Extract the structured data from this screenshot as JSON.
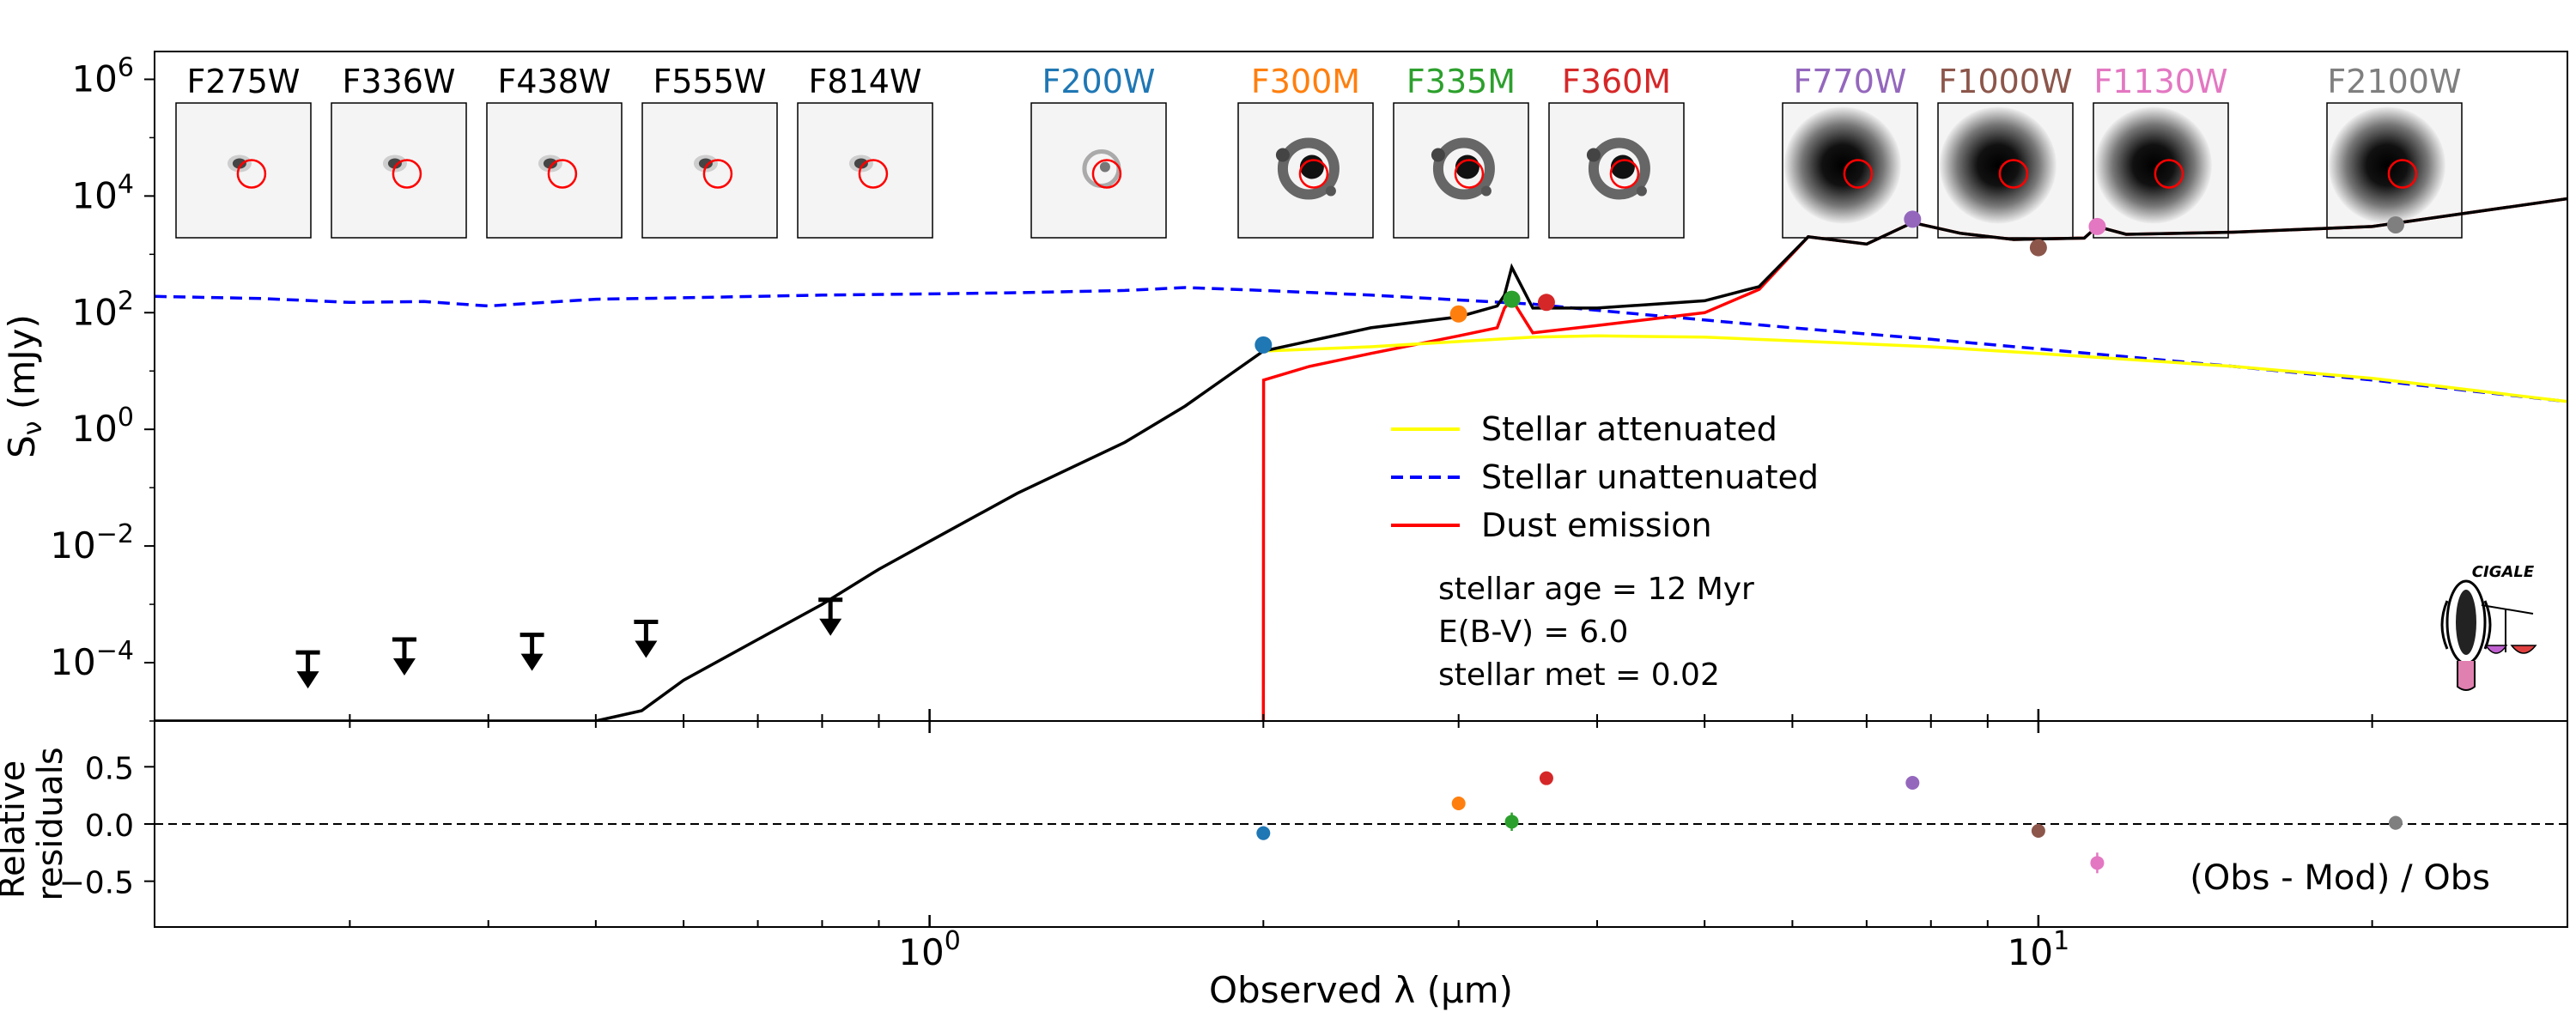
{
  "chart_data": [
    {
      "type": "line",
      "ylabel_main": "S",
      "ylabel_sub": "ν",
      "ylabel_unit": " (mJy)",
      "yscale": "log",
      "xscale": "log",
      "xlim": [
        0.2,
        30
      ],
      "ylim": [
        1e-05,
        3000000
      ],
      "y_ticks": [
        {
          "value": 0.0001,
          "base": "10",
          "exp": "−4"
        },
        {
          "value": 0.01,
          "base": "10",
          "exp": "−2"
        },
        {
          "value": 1,
          "base": "10",
          "exp": "0"
        },
        {
          "value": 100,
          "base": "10",
          "exp": "2"
        },
        {
          "value": 10000,
          "base": "10",
          "exp": "4"
        },
        {
          "value": 1000000,
          "base": "10",
          "exp": "6"
        }
      ],
      "filters": [
        {
          "label": "F275W",
          "color": "#000000",
          "style": "compact"
        },
        {
          "label": "F336W",
          "color": "#000000",
          "style": "compact"
        },
        {
          "label": "F438W",
          "color": "#000000",
          "style": "compact"
        },
        {
          "label": "F555W",
          "color": "#000000",
          "style": "compact"
        },
        {
          "label": "F814W",
          "color": "#000000",
          "style": "compact"
        },
        {
          "label": "F200W",
          "color": "#1f77b4",
          "style": "ring"
        },
        {
          "label": "F300M",
          "color": "#ff7f0e",
          "style": "ring"
        },
        {
          "label": "F335M",
          "color": "#2ca02c",
          "style": "ring"
        },
        {
          "label": "F360M",
          "color": "#d62728",
          "style": "ring"
        },
        {
          "label": "F770W",
          "color": "#9467bd",
          "style": "blob"
        },
        {
          "label": "F1000W",
          "color": "#8c564b",
          "style": "blob"
        },
        {
          "label": "F1130W",
          "color": "#e377c2",
          "style": "blob"
        },
        {
          "label": "F2100W",
          "color": "#7f7f7f",
          "style": "blob"
        }
      ],
      "legend_position": "center-right",
      "series": [
        {
          "name": "Stellar attenuated",
          "color": "#ffff00",
          "dash": "solid",
          "x": [
            2.0,
            2.5,
            3.0,
            3.5,
            4.0,
            5.0,
            6.0,
            8.0,
            10.0,
            15.0,
            20.0,
            30.0
          ],
          "y": [
            22,
            26,
            32,
            38,
            40,
            38,
            33,
            26,
            20,
            12,
            7.5,
            3
          ]
        },
        {
          "name": "Stellar unattenuated",
          "color": "#0000ff",
          "dash": "dashed",
          "x": [
            0.2,
            0.25,
            0.3,
            0.35,
            0.4,
            0.5,
            0.6,
            0.8,
            1.0,
            1.2,
            1.5,
            1.7,
            2.0,
            2.5,
            3.0,
            3.5,
            4.0,
            5.0,
            6.0,
            8.0,
            10.0,
            15.0,
            20.0,
            30.0
          ],
          "y": [
            190,
            175,
            150,
            155,
            130,
            170,
            180,
            200,
            210,
            220,
            240,
            270,
            240,
            200,
            165,
            140,
            110,
            75,
            55,
            35,
            24,
            12,
            7,
            3
          ]
        },
        {
          "name": "Dust emission",
          "color": "#ff0000",
          "dash": "solid",
          "x": [
            2.0,
            2.001,
            2.2,
            2.5,
            3.0,
            3.25,
            3.3,
            3.35,
            3.5,
            4.0,
            5.0,
            5.6,
            6.2,
            7.0,
            7.7,
            8.5,
            9.5,
            11.0,
            11.3,
            12.0,
            15.0,
            20.0,
            30.0
          ],
          "y": [
            1e-05,
            7,
            12,
            20,
            40,
            55,
            120,
            170,
            45,
            60,
            100,
            250,
            2000,
            1500,
            3500,
            2300,
            1800,
            1900,
            3000,
            2200,
            2400,
            3000,
            9000
          ]
        },
        {
          "name": "",
          "color": "#000000",
          "dash": "solid",
          "x": [
            0.2,
            0.4,
            0.5,
            0.55,
            0.6,
            0.7,
            0.8,
            0.9,
            1.0,
            1.2,
            1.5,
            1.7,
            2.0,
            2.5,
            3.0,
            3.25,
            3.3,
            3.35,
            3.5,
            4.0,
            5.0,
            5.6,
            6.2,
            7.0,
            7.7,
            8.5,
            9.5,
            11.0,
            11.3,
            12.0,
            15.0,
            20.0,
            30.0
          ],
          "y": [
            1e-05,
            1e-05,
            1e-05,
            1.5e-05,
            5e-05,
            0.00025,
            0.001,
            0.004,
            0.012,
            0.08,
            0.6,
            2.5,
            22,
            55,
            85,
            130,
            200,
            600,
            120,
            120,
            160,
            280,
            2000,
            1500,
            3500,
            2300,
            1800,
            1900,
            3000,
            2200,
            2400,
            3000,
            9000
          ]
        }
      ],
      "points": [
        {
          "filter": "F200W",
          "x": 2.0,
          "y": 28,
          "color": "#1f77b4"
        },
        {
          "filter": "F300M",
          "x": 3.0,
          "y": 95,
          "color": "#ff7f0e"
        },
        {
          "filter": "F335M",
          "x": 3.35,
          "y": 170,
          "color": "#2ca02c"
        },
        {
          "filter": "F360M",
          "x": 3.6,
          "y": 150,
          "color": "#d62728"
        },
        {
          "filter": "F770W",
          "x": 7.7,
          "y": 4000,
          "color": "#9467bd"
        },
        {
          "filter": "F1000W",
          "x": 10.0,
          "y": 1300,
          "color": "#8c564b"
        },
        {
          "filter": "F1130W",
          "x": 11.3,
          "y": 3000,
          "color": "#e377c2"
        },
        {
          "filter": "F2100W",
          "x": 21.0,
          "y": 3200,
          "color": "#7f7f7f"
        }
      ],
      "upper_limits": [
        {
          "filter": "F275W",
          "x": 0.275,
          "y": 0.00015
        },
        {
          "filter": "F336W",
          "x": 0.336,
          "y": 0.00025
        },
        {
          "filter": "F438W",
          "x": 0.438,
          "y": 0.0003
        },
        {
          "filter": "F555W",
          "x": 0.555,
          "y": 0.0005
        },
        {
          "filter": "F814W",
          "x": 0.814,
          "y": 0.0012
        }
      ],
      "annotations": [
        "stellar age = 12 Myr",
        "E(B-V) = 6.0",
        "stellar met = 0.02"
      ],
      "logo_text": "CIGALE"
    },
    {
      "type": "scatter",
      "ylabel_lines": [
        "Relative",
        "residuals"
      ],
      "xlabel": "Observed λ (μm)",
      "xlim": [
        0.2,
        30
      ],
      "ylim": [
        -0.9,
        0.9
      ],
      "xscale": "log",
      "y_ticks": [
        {
          "value": 0.5,
          "label": "0.5"
        },
        {
          "value": 0.0,
          "label": "0.0"
        },
        {
          "value": -0.5,
          "label": "−0.5"
        }
      ],
      "x_ticks": [
        {
          "value": 1,
          "base": "10",
          "exp": "0"
        },
        {
          "value": 10,
          "base": "10",
          "exp": "1"
        }
      ],
      "reference_line": 0,
      "annotation": "(Obs - Mod) / Obs",
      "points": [
        {
          "x": 2.0,
          "y": -0.08,
          "err": 0.06,
          "color": "#1f77b4"
        },
        {
          "x": 3.0,
          "y": 0.18,
          "err": 0.06,
          "color": "#ff7f0e"
        },
        {
          "x": 3.35,
          "y": 0.02,
          "err": 0.08,
          "color": "#2ca02c"
        },
        {
          "x": 3.6,
          "y": 0.4,
          "err": 0.04,
          "color": "#d62728"
        },
        {
          "x": 7.7,
          "y": 0.36,
          "err": 0.05,
          "color": "#9467bd"
        },
        {
          "x": 10.0,
          "y": -0.06,
          "err": 0.06,
          "color": "#8c564b"
        },
        {
          "x": 11.3,
          "y": -0.34,
          "err": 0.09,
          "color": "#e377c2"
        },
        {
          "x": 21.0,
          "y": 0.01,
          "err": 0.06,
          "color": "#7f7f7f"
        }
      ]
    }
  ]
}
